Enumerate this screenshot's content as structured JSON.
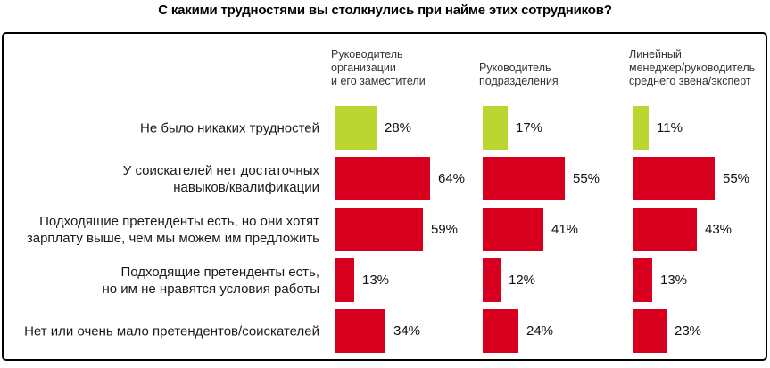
{
  "page": {
    "title": "С какими трудностями вы столкнулись при найме этих сотрудников?"
  },
  "chart_data": {
    "type": "bar",
    "orientation": "horizontal",
    "title": "С какими трудностями вы столкнулись при найме этих сотрудников?",
    "value_unit": "%",
    "xlim": [
      0,
      100
    ],
    "value_labels": true,
    "legend_position": "column-headers-top",
    "categories": [
      "Не было никаких трудностей",
      "У соискателей нет достаточных\nнавыков/квалификации",
      "Подходящие претенденты есть, но они хотят\nзарплату выше, чем мы можем им предложить",
      "Подходящие претенденты есть,\nно им не нравятся условия работы",
      "Нет или очень мало претендентов/соискателей"
    ],
    "series": [
      {
        "name": "Руководитель\nорганизации\nи его заместители",
        "values": [
          28,
          64,
          59,
          13,
          34
        ]
      },
      {
        "name": "Руководитель\nподразделения",
        "values": [
          17,
          55,
          41,
          12,
          24
        ]
      },
      {
        "name": "Линейный\nменеджер/руководитель\nсреднего звена/эксперт",
        "values": [
          11,
          55,
          43,
          13,
          23
        ]
      }
    ],
    "colors": {
      "first_category_bar": "#bcd631",
      "other_category_bars": "#d8001e",
      "frame_border": "#000000",
      "label_text": "#1a1a1a"
    }
  }
}
